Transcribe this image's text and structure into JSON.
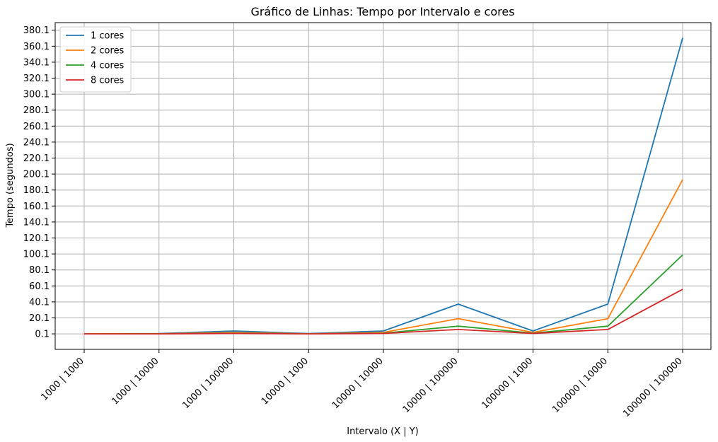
{
  "chart_data": {
    "type": "line",
    "title": "Gráfico de Linhas: Tempo por Intervalo e cores",
    "xlabel": "Intervalo (X | Y)",
    "ylabel": "Tempo (segundos)",
    "categories": [
      "1000 | 1000",
      "1000 | 10000",
      "1000 | 100000",
      "10000 | 1000",
      "10000 | 10000",
      "10000 | 100000",
      "100000 | 1000",
      "100000 | 10000",
      "100000 | 100000"
    ],
    "yticks": [
      "0.1",
      "20.1",
      "40.1",
      "60.1",
      "80.1",
      "100.1",
      "120.1",
      "140.1",
      "160.1",
      "180.1",
      "200.1",
      "220.1",
      "240.1",
      "260.1",
      "280.1",
      "300.1",
      "320.1",
      "340.1",
      "360.1",
      "380.1"
    ],
    "ylim": [
      -19.3,
      389.6
    ],
    "grid": true,
    "legend_position": "top-left",
    "series": [
      {
        "name": "1 cores",
        "color": "#1f77b4",
        "values": [
          0.1,
          0.5,
          3.7,
          0.4,
          3.7,
          37.3,
          3.7,
          37.3,
          370.5
        ]
      },
      {
        "name": "2 cores",
        "color": "#ff7f0e",
        "values": [
          0.1,
          0.3,
          1.9,
          0.2,
          1.9,
          19.1,
          1.9,
          19.1,
          193.0
        ]
      },
      {
        "name": "4 cores",
        "color": "#2ca02c",
        "values": [
          0.1,
          0.2,
          1.0,
          0.1,
          1.0,
          9.7,
          1.0,
          9.7,
          98.9
        ]
      },
      {
        "name": "8 cores",
        "color": "#d62728",
        "values": [
          0.1,
          0.1,
          0.6,
          0.1,
          0.6,
          5.6,
          0.6,
          5.6,
          55.8
        ]
      }
    ]
  }
}
